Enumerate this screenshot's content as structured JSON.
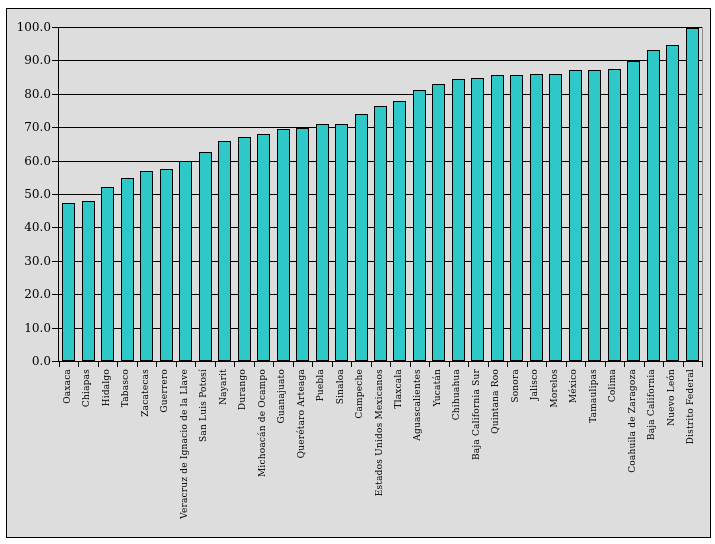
{
  "chart_data": {
    "type": "bar",
    "title": "",
    "xlabel": "",
    "ylabel": "",
    "categories": [
      "Oaxaca",
      "Chiapas",
      "Hidalgo",
      "Tabasco",
      "Zacatecas",
      "Guerrero",
      "Veracruz de Ignacio de la Llave",
      "San Luis Potosí",
      "Nayarit",
      "Durango",
      "Michoacán de Ocampo",
      "Guanajuato",
      "Querétaro Arteaga",
      "Puebla",
      "Sinaloa",
      "Campeche",
      "Estados Unidos Mexicanos",
      "Tlaxcala",
      "Aguascalientes",
      "Yucatán",
      "Chihuahua",
      "Baja California Sur",
      "Quintana Roo",
      "Sonora",
      "Jalisco",
      "Morelos",
      "México",
      "Tamaulipas",
      "Colima",
      "Coahuila de Zaragoza",
      "Baja California",
      "Nuevo León",
      "Distrito Federal"
    ],
    "values": [
      47.3,
      47.8,
      52.2,
      54.8,
      57.0,
      57.4,
      60.0,
      62.5,
      66.0,
      67.1,
      68.1,
      69.6,
      69.9,
      70.9,
      71.0,
      74.0,
      76.3,
      77.9,
      81.0,
      82.8,
      84.3,
      84.7,
      85.6,
      85.6,
      86.0,
      86.0,
      87.1,
      87.1,
      87.5,
      89.8,
      93.1,
      94.5,
      99.6
    ],
    "ylim": [
      0,
      100
    ],
    "ytick_step": 10,
    "ytick_labels": [
      "0.0",
      "10.0",
      "20.0",
      "30.0",
      "40.0",
      "50.0",
      "60.0",
      "70.0",
      "80.0",
      "90.0",
      "100.0"
    ],
    "grid": true,
    "legend_position": "none",
    "colors": {
      "bar_fill": "#2fc8c9",
      "bar_border": "#000000",
      "plot_background": "#dddddd",
      "gridline": "#000000",
      "plot_border": "#8a8a8a"
    }
  }
}
